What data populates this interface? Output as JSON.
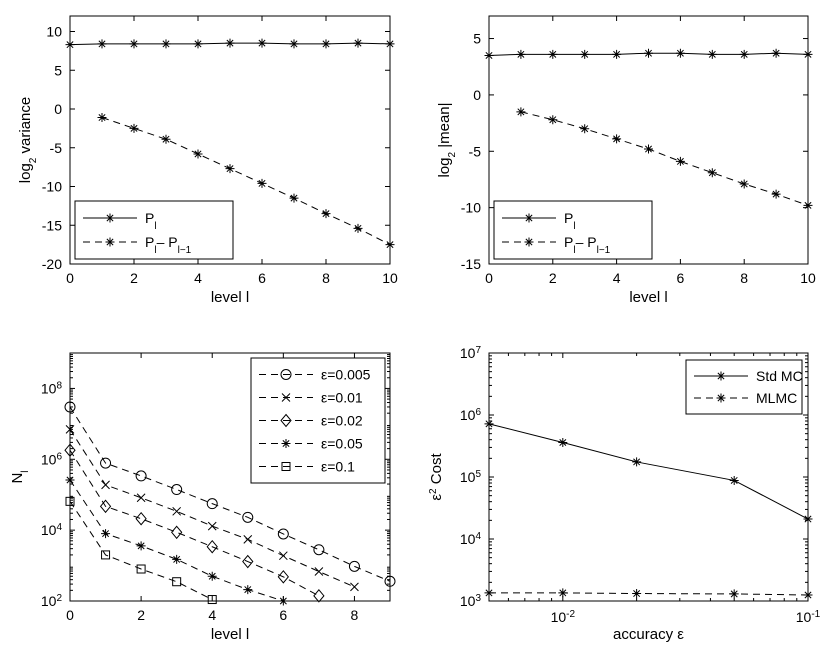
{
  "chart_data": [
    {
      "type": "line",
      "id": "variance",
      "xlabel": "level l",
      "ylabel": "log2 variance",
      "xlim": [
        0,
        10
      ],
      "ylim": [
        -20,
        12
      ],
      "xticks": [
        0,
        2,
        4,
        6,
        8,
        10
      ],
      "yticks": [
        -20,
        -15,
        -10,
        -5,
        0,
        5,
        10
      ],
      "legend_position": "bottom-left",
      "series": [
        {
          "name": "P_l",
          "style": "solid",
          "marker": "asterisk",
          "x": [
            0,
            1,
            2,
            3,
            4,
            5,
            6,
            7,
            8,
            9,
            10
          ],
          "y": [
            8.3,
            8.4,
            8.4,
            8.4,
            8.4,
            8.5,
            8.5,
            8.4,
            8.4,
            8.5,
            8.4
          ]
        },
        {
          "name": "P_l - P_l-1",
          "style": "dashed",
          "marker": "asterisk",
          "x": [
            1,
            2,
            3,
            4,
            5,
            6,
            7,
            8,
            9,
            10
          ],
          "y": [
            -1.1,
            -2.5,
            -3.9,
            -5.8,
            -7.7,
            -9.6,
            -11.5,
            -13.5,
            -15.4,
            -17.5
          ]
        }
      ]
    },
    {
      "type": "line",
      "id": "mean",
      "xlabel": "level l",
      "ylabel": "log2 |mean|",
      "xlim": [
        0,
        10
      ],
      "ylim": [
        -15,
        7
      ],
      "xticks": [
        0,
        2,
        4,
        6,
        8,
        10
      ],
      "yticks": [
        -15,
        -10,
        -5,
        0,
        5
      ],
      "legend_position": "bottom-left",
      "series": [
        {
          "name": "P_l",
          "style": "solid",
          "marker": "asterisk",
          "x": [
            0,
            1,
            2,
            3,
            4,
            5,
            6,
            7,
            8,
            9,
            10
          ],
          "y": [
            3.5,
            3.6,
            3.6,
            3.6,
            3.6,
            3.7,
            3.7,
            3.6,
            3.6,
            3.7,
            3.6
          ]
        },
        {
          "name": "P_l - P_l-1",
          "style": "dashed",
          "marker": "asterisk",
          "x": [
            1,
            2,
            3,
            4,
            5,
            6,
            7,
            8,
            9,
            10
          ],
          "y": [
            -1.5,
            -2.2,
            -3.0,
            -3.9,
            -4.8,
            -5.9,
            -6.9,
            -7.9,
            -8.8,
            -9.8
          ]
        }
      ]
    },
    {
      "type": "line",
      "id": "samples",
      "xlabel": "level l",
      "ylabel": "N_l",
      "yscale": "log",
      "xlim": [
        0,
        9
      ],
      "ylim": [
        100,
        1000000000
      ],
      "xticks": [
        0,
        2,
        4,
        6,
        8
      ],
      "yticks": [
        100,
        10000,
        1000000,
        100000000
      ],
      "legend_position": "top-right",
      "series": [
        {
          "name": "ε=0.005",
          "style": "dashed",
          "marker": "circle",
          "x": [
            0,
            1,
            2,
            3,
            4,
            5,
            6,
            7,
            8,
            9
          ],
          "y": [
            30000000,
            780000,
            340000,
            140000,
            56000,
            23000,
            7800,
            2800,
            950,
            360
          ]
        },
        {
          "name": "ε=0.01",
          "style": "dashed",
          "marker": "x",
          "x": [
            0,
            1,
            2,
            3,
            4,
            5,
            6,
            7,
            8
          ],
          "y": [
            7000000,
            190000,
            82000,
            34000,
            13000,
            5500,
            1900,
            680,
            250
          ]
        },
        {
          "name": "ε=0.02",
          "style": "dashed",
          "marker": "diamond",
          "x": [
            0,
            1,
            2,
            3,
            4,
            5,
            6,
            7
          ],
          "y": [
            1800000,
            47000,
            21000,
            8700,
            3400,
            1300,
            480,
            140
          ]
        },
        {
          "name": "ε=0.05",
          "style": "dashed",
          "marker": "asterisk",
          "x": [
            0,
            1,
            2,
            3,
            4,
            5,
            6
          ],
          "y": [
            260000,
            8000,
            3600,
            1500,
            500,
            210,
            100
          ]
        },
        {
          "name": "ε=0.1",
          "style": "dashed",
          "marker": "square",
          "x": [
            0,
            1,
            2,
            3,
            4
          ],
          "y": [
            65000,
            2000,
            800,
            350,
            110
          ]
        }
      ]
    },
    {
      "type": "line",
      "id": "cost",
      "xlabel": "accuracy ε",
      "ylabel": "ε² Cost",
      "xscale": "log",
      "yscale": "log",
      "xlim": [
        0.005,
        0.1
      ],
      "ylim": [
        1000,
        10000000
      ],
      "xticks": [
        0.01,
        0.1
      ],
      "yticks": [
        1000,
        10000,
        100000,
        1000000,
        10000000
      ],
      "legend_position": "top-right",
      "series": [
        {
          "name": "Std MC",
          "style": "solid",
          "marker": "asterisk",
          "x": [
            0.005,
            0.01,
            0.02,
            0.05,
            0.1
          ],
          "y": [
            720000,
            360000,
            175000,
            88000,
            21000
          ]
        },
        {
          "name": "MLMC",
          "style": "dashed",
          "marker": "asterisk",
          "x": [
            0.005,
            0.01,
            0.02,
            0.05,
            0.1
          ],
          "y": [
            1350,
            1350,
            1320,
            1300,
            1250
          ]
        }
      ]
    }
  ]
}
